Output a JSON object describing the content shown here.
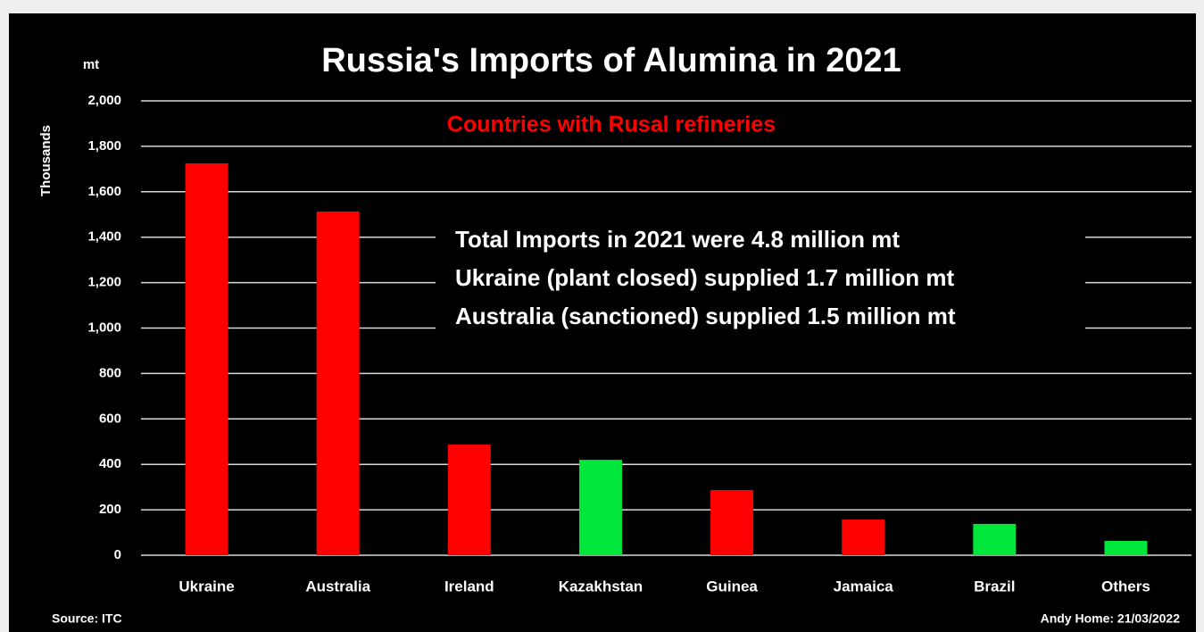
{
  "chart_data": {
    "type": "bar",
    "title": "Russia's Imports of Alumina in 2021",
    "subtitle": "Countries with Rusal refineries",
    "unit_label": "mt",
    "y_axis_label": "Thousands",
    "annotations": [
      "Total Imports in 2021 were 4.8 million mt",
      "Ukraine (plant closed) supplied 1.7 million mt",
      "Australia (sanctioned) supplied 1.5 million  mt"
    ],
    "source": "Source: ITC",
    "credit": "Andy Home: 21/03/2022",
    "categories": [
      "Ukraine",
      "Australia",
      "Ireland",
      "Kazakhstan",
      "Guinea",
      "Jamaica",
      "Brazil",
      "Others"
    ],
    "values": [
      1725,
      1513,
      487,
      420,
      287,
      157,
      138,
      63
    ],
    "colors": [
      "#ff0000",
      "#ff0000",
      "#ff0000",
      "#00e63a",
      "#ff0000",
      "#ff0000",
      "#00e63a",
      "#00e63a"
    ],
    "subtitle_color": "#ff0000",
    "ylim": [
      0,
      2000
    ],
    "yticks": [
      0,
      200,
      400,
      600,
      800,
      {
        "value": 1000,
        "label": "1,000"
      },
      {
        "value": 1200,
        "label": "1,200"
      },
      {
        "value": 1400,
        "label": "1,400"
      },
      {
        "value": 1600,
        "label": "1,600"
      },
      {
        "value": 1800,
        "label": "1,800"
      },
      {
        "value": 2000,
        "label": "2,000"
      }
    ],
    "grid": true
  }
}
